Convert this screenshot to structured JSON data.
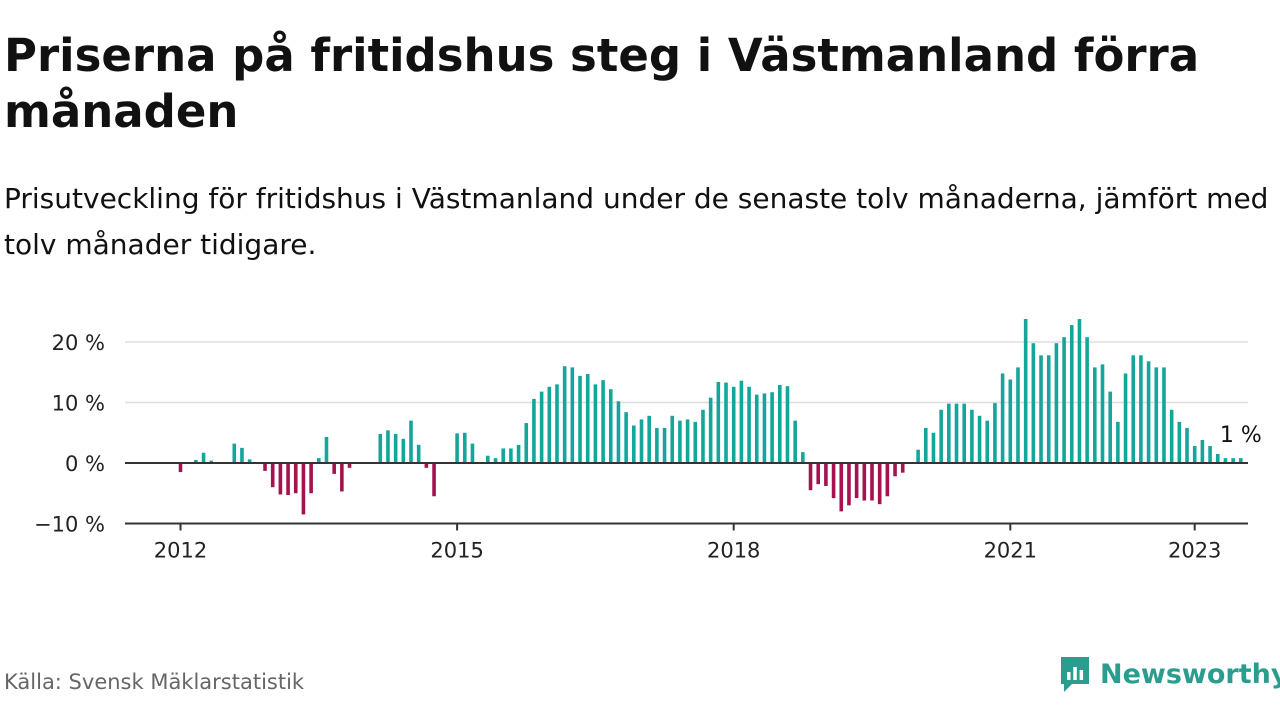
{
  "header": {
    "title": "Priserna på fritidshus steg i Västmanland förra månaden",
    "subtitle": "Prisutveckling för fritidshus i Västmanland under de senaste tolv månaderna, jämfört med tolv månader tidigare."
  },
  "footer": {
    "source": "Källa: Svensk Mäklarstatistik",
    "brand": "Newsworthy"
  },
  "colors": {
    "positive": "#14a69a",
    "negative": "#a5124f",
    "grid": "#dddddd",
    "axis": "#333333",
    "brand": "#2a9d8f"
  },
  "chart_data": {
    "type": "bar",
    "x_start": "2012-01",
    "x_end": "2023-01",
    "y_unit": "%",
    "ylim": [
      -10,
      24
    ],
    "y_ticks": [
      -10,
      0,
      10,
      20
    ],
    "y_tick_labels": [
      "−10 %",
      "0 %",
      "10 %",
      "20 %"
    ],
    "x_ticks": [
      2012,
      2015,
      2018,
      2021,
      2023
    ],
    "x_tick_labels": [
      "2012",
      "2015",
      "2018",
      "2021",
      "2023"
    ],
    "grid": true,
    "last_value_label": "1 %",
    "values": [
      -1.5,
      0,
      0.5,
      1.7,
      0.4,
      0,
      0,
      3.2,
      2.5,
      0.6,
      0,
      -1.3,
      -4,
      -5.2,
      -5.3,
      -5,
      -8.5,
      -5,
      0.8,
      4.3,
      -1.8,
      -4.7,
      -0.8,
      0,
      0,
      0,
      4.8,
      5.4,
      4.8,
      4,
      7,
      3,
      -0.8,
      -5.5,
      0,
      0,
      4.9,
      5,
      3.2,
      0,
      1.2,
      0.8,
      2.4,
      2.4,
      3,
      6.6,
      10.6,
      11.8,
      12.6,
      13,
      16,
      15.8,
      14.4,
      14.7,
      13,
      13.7,
      12.2,
      10.2,
      8.4,
      6.2,
      7.2,
      7.8,
      5.8,
      5.8,
      7.8,
      7,
      7.2,
      6.8,
      8.8,
      10.8,
      13.4,
      13.3,
      12.6,
      13.6,
      12.6,
      11.3,
      11.5,
      11.7,
      12.9,
      12.7,
      7,
      1.8,
      -4.5,
      -3.5,
      -3.8,
      -5.8,
      -8,
      -7,
      -5.8,
      -6.2,
      -6.2,
      -6.8,
      -5.5,
      -2.2,
      -1.6,
      0,
      2.2,
      5.8,
      5,
      8.8,
      9.8,
      9.8,
      9.8,
      8.8,
      7.8,
      7,
      9.9,
      14.8,
      13.8,
      15.8,
      23.8,
      19.8,
      17.8,
      17.8,
      19.8,
      20.8,
      22.8,
      23.8,
      20.8,
      15.8,
      16.3,
      11.8,
      6.8,
      14.8,
      17.8,
      17.8,
      16.8,
      15.8,
      15.8,
      8.8,
      6.8,
      5.8,
      2.8,
      3.8,
      2.8,
      1.5,
      0.8,
      0.8,
      0.8
    ]
  }
}
